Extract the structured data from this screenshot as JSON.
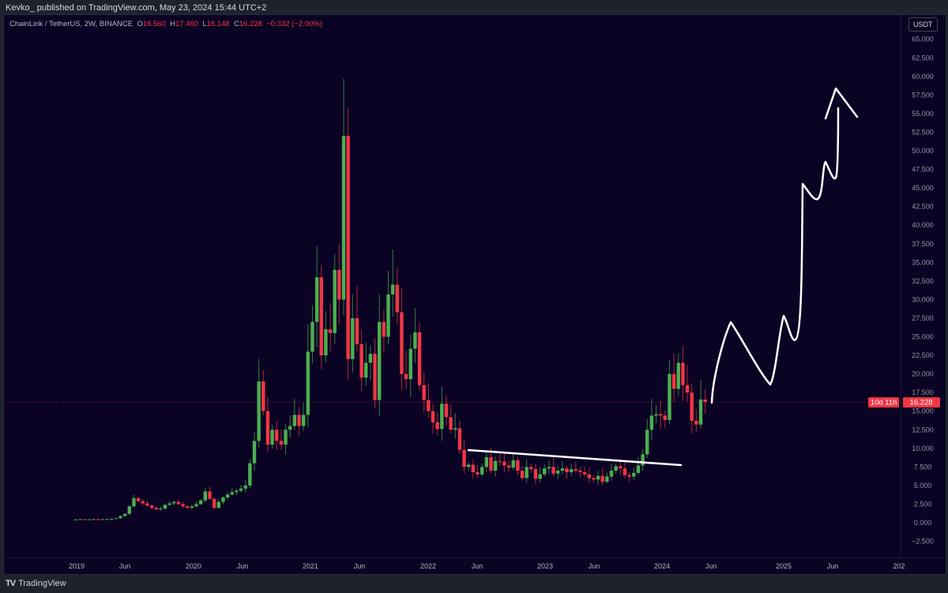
{
  "byline": "Kevko_ published on TradingView.com, May 23, 2024 15:44 UTC+2",
  "legend": {
    "symbol": "ChainLink / TetherUS, 2W, BINANCE",
    "o_label": "O",
    "o": "16.560",
    "h_label": "H",
    "h": "17.460",
    "l_label": "L",
    "l": "16.148",
    "c_label": "C",
    "c": "16.228",
    "change": "−0.332 (−2.00%)"
  },
  "currency_button": "USDT",
  "last_price": {
    "price": "16.228",
    "countdown": "10d 11h"
  },
  "footer": {
    "logo_mark": "TV",
    "brand": "TradingView"
  },
  "colors": {
    "up": "#4caf50",
    "down": "#f23645",
    "background": "#0b0324",
    "drawing": "#ffffff"
  },
  "chart_data": {
    "type": "candlestick",
    "title": "ChainLink / TetherUS, 2W, BINANCE",
    "interval": "2W",
    "ylim": [
      -3.5,
      66.5
    ],
    "y_ticks": [
      "65.000",
      "62.500",
      "60.000",
      "57.500",
      "55.000",
      "52.500",
      "50.000",
      "47.500",
      "45.000",
      "42.500",
      "40.000",
      "37.500",
      "35.000",
      "32.500",
      "30.000",
      "27.500",
      "25.000",
      "22.500",
      "20.000",
      "17.500",
      "15.000",
      "12.500",
      "10.000",
      "7.500",
      "5.000",
      "2.500",
      "0.000",
      "−2.500"
    ],
    "x_ticks": [
      "2019",
      "Jun",
      "2020",
      "Jun",
      "2021",
      "Jun",
      "2022",
      "Jun",
      "2023",
      "Jun",
      "2024",
      "Jun",
      "2025",
      "Jun",
      "202"
    ],
    "first_open": 0.44,
    "closes": [
      0.45,
      0.47,
      0.44,
      0.46,
      0.48,
      0.46,
      0.47,
      0.48,
      0.52,
      0.6,
      0.9,
      1.2,
      2.2,
      3.3,
      2.9,
      2.6,
      2.3,
      2.0,
      1.8,
      1.9,
      2.4,
      2.6,
      2.8,
      2.5,
      2.2,
      2.0,
      2.2,
      2.5,
      3.0,
      4.2,
      3.2,
      2.0,
      2.8,
      3.4,
      3.8,
      4.1,
      4.3,
      4.6,
      5.0,
      8.0,
      11.0,
      19.0,
      15.0,
      10.5,
      12.5,
      11.0,
      10.5,
      12.5,
      13.0,
      14.5,
      13.0,
      14.5,
      23,
      27,
      33,
      22.5,
      26,
      25.5,
      34,
      30,
      52,
      22,
      27.5,
      24,
      19.5,
      21.5,
      22.7,
      16.5,
      27,
      25,
      30.7,
      32,
      28.3,
      20,
      19.3,
      23.4,
      25.6,
      18.5,
      16.5,
      15,
      13.5,
      12.6,
      16,
      14.2,
      12.5,
      12.7,
      9.8,
      7.5,
      7.8,
      6.8,
      6.5,
      7.5,
      8.8,
      7.0,
      8.3,
      8.2,
      7.7,
      7.4,
      8.4,
      7.0,
      6.0,
      7.5,
      7.2,
      5.9,
      6.5,
      7.3,
      7.5,
      6.6,
      7.0,
      7.3,
      6.8,
      7.2,
      7.0,
      6.8,
      6.5,
      6.0,
      5.8,
      6.3,
      5.5,
      6.2,
      7.0,
      7.6,
      7.3,
      6.4,
      6.2,
      6.7,
      7.7,
      9.2,
      12.5,
      14.4,
      14.6,
      14.4,
      13.8,
      20.0,
      18.0,
      21.5,
      18.5,
      17.5,
      13.7,
      13.2,
      16.56,
      16.228
    ],
    "trendline": [
      [
        9.8,
        "2022-05"
      ],
      [
        7.8,
        "2024-03"
      ]
    ],
    "projection_path_prices": [
      16.2,
      18.5,
      27.2,
      18.8,
      28.0,
      24.8,
      45.5,
      43.5,
      48.5,
      46.5,
      55.8
    ],
    "last_price": 16.228
  }
}
